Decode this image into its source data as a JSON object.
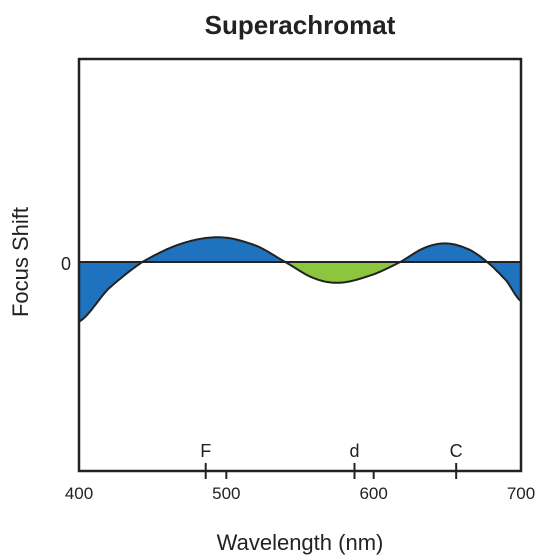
{
  "chart_data": {
    "type": "area",
    "title": "Superachromat",
    "xlabel": "Wavelength (nm)",
    "ylabel": "Focus Shift",
    "xlim": [
      400,
      700
    ],
    "ylim": [
      -1,
      1
    ],
    "xticks": [
      400,
      500,
      600,
      700
    ],
    "ytick_labels": [
      {
        "value": 0,
        "label": "0"
      }
    ],
    "grid": false,
    "spectral_lines": [
      {
        "label": "F",
        "wavelength": 486
      },
      {
        "label": "d",
        "wavelength": 587
      },
      {
        "label": "C",
        "wavelength": 656
      }
    ],
    "series": [
      {
        "x": [
          400,
          420,
          443,
          470,
          496,
          520,
          540,
          560,
          578,
          600,
          618,
          635,
          650,
          665,
          677,
          690,
          700
        ],
        "y": [
          -0.29,
          -0.13,
          0.0,
          0.09,
          0.12,
          0.08,
          0.0,
          -0.08,
          -0.1,
          -0.06,
          0.0,
          0.07,
          0.09,
          0.06,
          0.0,
          -0.09,
          -0.19
        ]
      }
    ],
    "colors": {
      "positive": "#1f73be",
      "negative": "#8cc63f",
      "axis": "#222222"
    }
  }
}
